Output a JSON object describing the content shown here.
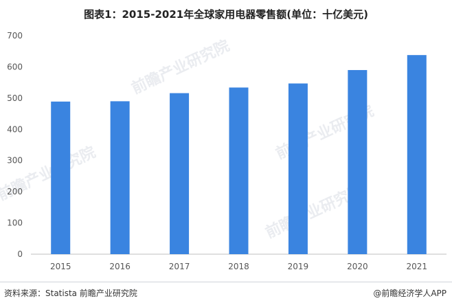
{
  "title": "图表1：2015-2021年全球家用电器零售额(单位：十亿美元)",
  "footer": {
    "source": "资料来源：Statista 前瞻产业研究院",
    "brand": "@前瞻经济学人APP"
  },
  "watermark": "前瞻产业研究院",
  "colors": {
    "bar": "#3a84e0",
    "axis": "#bfbfbf",
    "watermark": "#d9dde4"
  },
  "chart_data": {
    "type": "bar",
    "title": "图表1：2015-2021年全球家用电器零售额(单位：十亿美元)",
    "categories": [
      "2015",
      "2016",
      "2017",
      "2018",
      "2019",
      "2020",
      "2021"
    ],
    "values": [
      489,
      490,
      516,
      534,
      547,
      590,
      638
    ],
    "ylim": [
      0,
      700
    ],
    "yticks": [
      0,
      100,
      200,
      300,
      400,
      500,
      600,
      700
    ],
    "xlabel": "",
    "ylabel": "",
    "grid": false,
    "legend": "none"
  }
}
